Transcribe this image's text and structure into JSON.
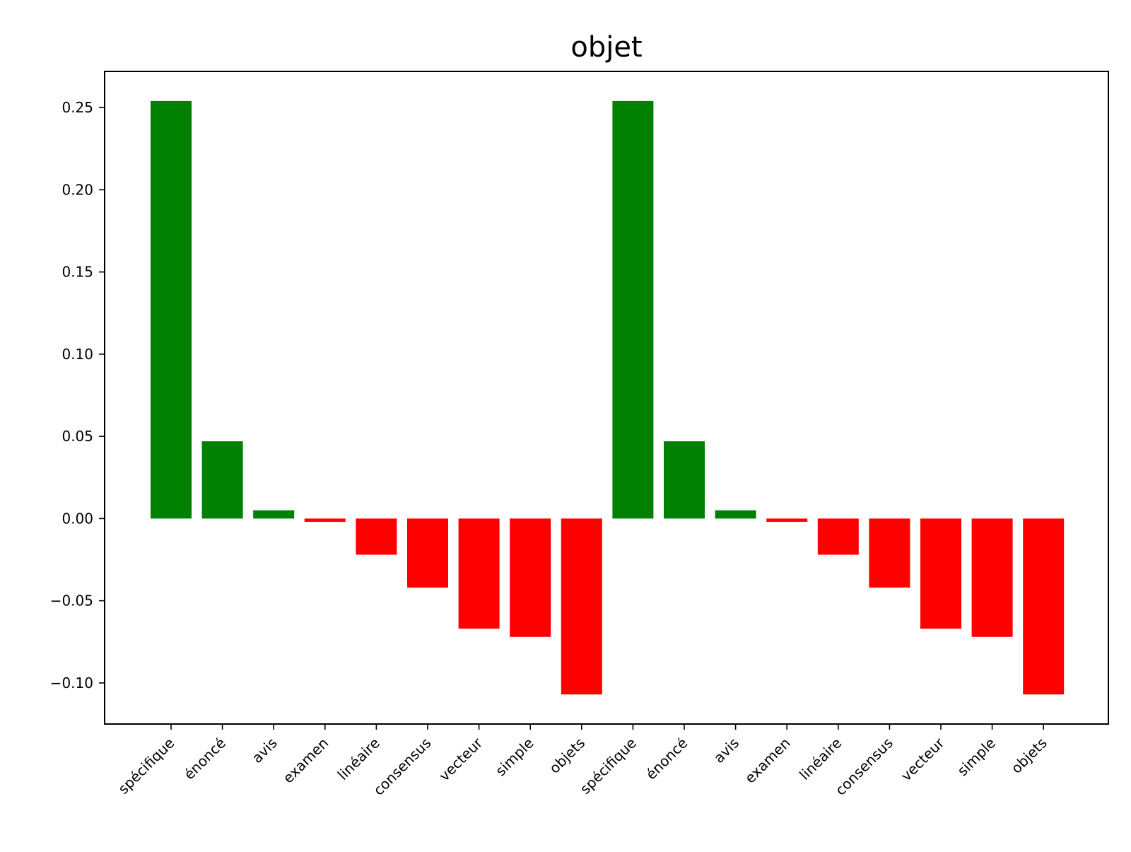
{
  "chart_data": {
    "type": "bar",
    "title": "objet",
    "xlabel": "",
    "ylabel": "",
    "categories": [
      "spécifique",
      "énoncé",
      "avis",
      "examen",
      "linéaire",
      "consensus",
      "vecteur",
      "simple",
      "objets",
      "spécifique",
      "énoncé",
      "avis",
      "examen",
      "linéaire",
      "consensus",
      "vecteur",
      "simple",
      "objets"
    ],
    "values": [
      0.254,
      0.047,
      0.005,
      -0.002,
      -0.022,
      -0.042,
      -0.067,
      -0.072,
      -0.107,
      0.254,
      0.047,
      0.005,
      -0.002,
      -0.022,
      -0.042,
      -0.067,
      -0.072,
      -0.107
    ],
    "ylim": [
      -0.125,
      0.272
    ],
    "yticks": [
      -0.1,
      -0.05,
      0.0,
      0.05,
      0.1,
      0.15,
      0.2,
      0.25
    ],
    "ytick_labels": [
      "−0.10",
      "−0.05",
      "0.00",
      "0.05",
      "0.10",
      "0.15",
      "0.20",
      "0.25"
    ],
    "positive_color": "#008000",
    "negative_color": "#ff0000",
    "grid": false,
    "legend": "none"
  }
}
